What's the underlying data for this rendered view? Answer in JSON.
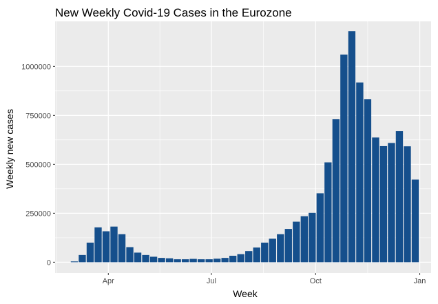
{
  "chart_data": {
    "type": "bar",
    "title": "New Weekly Covid-19 Cases in the Eurozone",
    "xlabel": "Week",
    "ylabel": "Weekly new cases",
    "x_tick_labels": [
      "Apr",
      "Jul",
      "Oct",
      "Jan"
    ],
    "x_ticks": [
      "2020-04-01",
      "2020-07-01",
      "2020-10-01",
      "2021-01-01"
    ],
    "xlim": [
      "2020-02-14",
      "2021-01-11"
    ],
    "y_ticks": [
      0,
      250000,
      500000,
      750000,
      1000000
    ],
    "y_tick_labels": [
      "0",
      "250000",
      "500000",
      "750000",
      "1000000"
    ],
    "ylim": [
      -55000,
      1230000
    ],
    "grid": true,
    "background": "#ebebeb",
    "bar_color": "#154f8c",
    "x": [
      "2020-03-02",
      "2020-03-09",
      "2020-03-16",
      "2020-03-23",
      "2020-03-30",
      "2020-04-06",
      "2020-04-13",
      "2020-04-20",
      "2020-04-27",
      "2020-05-04",
      "2020-05-11",
      "2020-05-18",
      "2020-05-25",
      "2020-06-01",
      "2020-06-08",
      "2020-06-15",
      "2020-06-22",
      "2020-06-29",
      "2020-07-06",
      "2020-07-13",
      "2020-07-20",
      "2020-07-27",
      "2020-08-03",
      "2020-08-10",
      "2020-08-17",
      "2020-08-24",
      "2020-08-31",
      "2020-09-07",
      "2020-09-14",
      "2020-09-21",
      "2020-09-28",
      "2020-10-05",
      "2020-10-12",
      "2020-10-19",
      "2020-10-26",
      "2020-11-02",
      "2020-11-09",
      "2020-11-16",
      "2020-11-23",
      "2020-11-30",
      "2020-12-07",
      "2020-12-14",
      "2020-12-21",
      "2020-12-28"
    ],
    "values": [
      4000,
      37000,
      100000,
      178000,
      158000,
      182000,
      143000,
      77000,
      49000,
      37000,
      28000,
      22000,
      20000,
      15000,
      15000,
      17000,
      15000,
      15000,
      18000,
      22000,
      33000,
      41000,
      57000,
      75000,
      100000,
      120000,
      143000,
      170000,
      207000,
      235000,
      252000,
      352000,
      510000,
      730000,
      1060000,
      1180000,
      918000,
      832000,
      637000,
      593000,
      609000,
      670000,
      592000,
      422000
    ]
  }
}
